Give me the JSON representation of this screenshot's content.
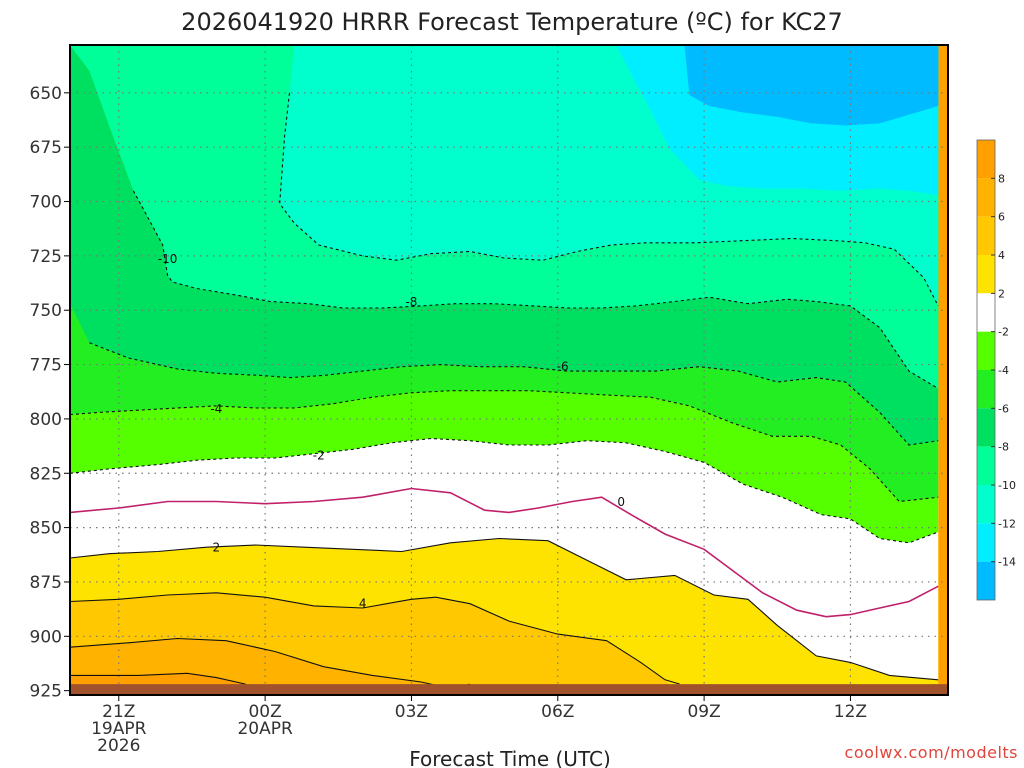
{
  "chart_data": {
    "type": "heatmap",
    "title": "2026041920 HRRR Forecast Temperature (ºC) for KC27",
    "xlabel": "Forecast Time (UTC)",
    "ylabel": "",
    "credit": "coolwx.com/modelts",
    "x_hours": [
      0,
      3,
      6,
      9,
      12,
      15,
      18
    ],
    "xlim": [
      -1,
      17
    ],
    "x_ticks": [
      {
        "hour": 0,
        "lines": [
          "21Z",
          "19APR",
          "2026"
        ]
      },
      {
        "hour": 3,
        "lines": [
          "00Z",
          "20APR"
        ]
      },
      {
        "hour": 6,
        "lines": [
          "03Z"
        ]
      },
      {
        "hour": 9,
        "lines": [
          "06Z"
        ]
      },
      {
        "hour": 12,
        "lines": [
          "09Z"
        ]
      },
      {
        "hour": 15,
        "lines": [
          "12Z"
        ]
      }
    ],
    "y_ticks": [
      650,
      675,
      700,
      725,
      750,
      775,
      800,
      825,
      850,
      875,
      900,
      925
    ],
    "ylim": [
      628,
      927
    ],
    "ground_level_hPa": 922,
    "colorbar": {
      "labels": [
        "8",
        "6",
        "4",
        "2",
        "-2",
        "-4",
        "-6",
        "-8",
        "-10",
        "-12",
        "-14"
      ],
      "bands": [
        {
          "lo": 8,
          "hi": 10,
          "color": "#ff9f00"
        },
        {
          "lo": 6,
          "hi": 8,
          "color": "#ffb300"
        },
        {
          "lo": 4,
          "hi": 6,
          "color": "#ffc800"
        },
        {
          "lo": 2,
          "hi": 4,
          "color": "#ffe300"
        },
        {
          "lo": -2,
          "hi": 2,
          "color": "#ffffff"
        },
        {
          "lo": -4,
          "hi": -2,
          "color": "#55ff00"
        },
        {
          "lo": -6,
          "hi": -4,
          "color": "#22ee22"
        },
        {
          "lo": -8,
          "hi": -6,
          "color": "#00e060"
        },
        {
          "lo": -10,
          "hi": -8,
          "color": "#00ff99"
        },
        {
          "lo": -12,
          "hi": -10,
          "color": "#00ffcc"
        },
        {
          "lo": -14,
          "hi": -12,
          "color": "#00eeff"
        },
        {
          "lo": -16,
          "hi": -14,
          "color": "#00bbff"
        }
      ]
    },
    "contours": [
      {
        "level": -12,
        "color": "#ff9f00",
        "hour": [],
        "hPa": []
      },
      {
        "level": -14,
        "color": "#00bbff",
        "hour": [
          11.6,
          11.7,
          12.1,
          12.8,
          13.5,
          14.2,
          14.9,
          15.6,
          16.2,
          16.8,
          16.8,
          11.6
        ],
        "hPa": [
          628,
          651,
          656,
          659,
          661,
          664,
          665,
          664,
          660,
          656,
          628,
          628
        ]
      },
      {
        "level": -12,
        "color": "#00eeff",
        "hour": [
          10.2,
          10.5,
          10.9,
          11.3,
          11.9,
          12.5,
          13.2,
          14.0,
          14.8,
          15.6,
          16.2,
          16.8,
          16.8,
          10.2
        ],
        "hPa": [
          628,
          641,
          658,
          676,
          690,
          693,
          694,
          694,
          695,
          694,
          695,
          697,
          628,
          628
        ]
      },
      {
        "level": -10,
        "color": "#00ffcc",
        "hour": [
          3.6,
          3.5,
          3.4,
          3.3,
          3.6,
          4.1,
          5.0,
          5.7,
          6.4,
          7.2,
          7.9,
          8.7,
          9.4,
          10.1,
          10.8,
          11.8,
          12.8,
          13.8,
          14.7,
          15.3,
          15.9,
          16.5,
          16.8,
          16.8,
          3.6
        ],
        "hPa": [
          628,
          650,
          670,
          701,
          710,
          720,
          725,
          727,
          724,
          723,
          726,
          727,
          723,
          720,
          719,
          719,
          718,
          717,
          718,
          719,
          722,
          735,
          748,
          628,
          628
        ]
      },
      {
        "level": -8,
        "color": "#00ff99",
        "hour": [
          -1,
          -0.6,
          -0.2,
          0.3,
          0.9,
          1.0,
          1.1,
          1.6,
          2.4,
          3.1,
          3.9,
          4.6,
          5.4,
          6.2,
          6.9,
          7.7,
          8.5,
          9.2,
          9.9,
          10.6,
          11.4,
          12.1,
          12.9,
          13.7,
          14.3,
          15.0,
          15.6,
          16.2,
          16.8,
          16.8,
          -1
        ],
        "hPa": [
          628,
          640,
          665,
          695,
          720,
          734,
          737,
          740,
          743,
          746,
          747,
          749,
          749,
          748,
          747,
          747,
          748,
          749,
          749,
          748,
          746,
          744,
          747,
          745,
          746,
          748,
          758,
          778,
          786,
          628,
          628
        ]
      },
      {
        "level": -6,
        "color": "#00e060",
        "hour": [
          -1,
          -0.6,
          0.2,
          1.2,
          2.0,
          2.9,
          3.5,
          4.2,
          5.0,
          5.8,
          6.6,
          7.4,
          8.3,
          9.2,
          10.1,
          11.0,
          11.9,
          12.7,
          13.5,
          14.3,
          14.9,
          15.6,
          16.2,
          16.8,
          16.8,
          -1
        ],
        "hPa": [
          747,
          765,
          772,
          777,
          779,
          780,
          781,
          780,
          778,
          776,
          775,
          776,
          776,
          778,
          778,
          778,
          776,
          778,
          783,
          781,
          783,
          797,
          812,
          810,
          628,
          628
        ]
      },
      {
        "level": -4,
        "color": "#22ee22",
        "hour": [
          -1,
          -0.4,
          0.4,
          1.2,
          2.0,
          2.8,
          3.6,
          4.4,
          5.2,
          6.0,
          6.8,
          7.6,
          8.4,
          9.2,
          10.0,
          10.9,
          11.7,
          12.6,
          13.4,
          14.2,
          14.8,
          15.4,
          16.0,
          16.8,
          16.8,
          -1
        ],
        "hPa": [
          798,
          797,
          796,
          795,
          794,
          795,
          795,
          793,
          790,
          788,
          787,
          787,
          787,
          788,
          789,
          790,
          794,
          802,
          808,
          808,
          812,
          823,
          838,
          836,
          628,
          628
        ]
      },
      {
        "level": -2,
        "color": "#55ff00",
        "hour": [
          -1,
          -0.2,
          0.8,
          1.6,
          2.4,
          3.2,
          4.0,
          4.8,
          5.6,
          6.4,
          7.2,
          8.0,
          8.8,
          9.6,
          10.4,
          11.2,
          12.0,
          12.8,
          13.6,
          14.4,
          15.0,
          15.6,
          16.2,
          16.8,
          16.8,
          -1
        ],
        "hPa": [
          825,
          823,
          821,
          819,
          818,
          818,
          816,
          814,
          811,
          809,
          810,
          812,
          812,
          810,
          811,
          815,
          820,
          830,
          836,
          844,
          846,
          855,
          857,
          852,
          628,
          628
        ]
      },
      {
        "level": 2,
        "color": "#ffffff",
        "hour": [
          -1,
          -0.2,
          0.8,
          1.8,
          2.8,
          3.8,
          4.8,
          5.8,
          6.8,
          7.8,
          8.8,
          9.6,
          10.4,
          11.4,
          12.2,
          12.9,
          13.5,
          14.3,
          15.0,
          15.8,
          16.8,
          16.8,
          -1
        ],
        "hPa": [
          864,
          862,
          861,
          859,
          858,
          859,
          860,
          861,
          857,
          855,
          856,
          865,
          874,
          872,
          881,
          883,
          895,
          909,
          912,
          918,
          920,
          628,
          628
        ]
      },
      {
        "level": 4,
        "color": "#ffe300",
        "hour": [
          -1,
          0.0,
          1.0,
          2.0,
          3.0,
          4.0,
          5.0,
          6.0,
          6.5,
          7.2,
          8.0,
          9.0,
          10.0,
          10.7,
          11.2,
          11.5,
          16.8,
          16.8,
          -1
        ],
        "hPa": [
          884,
          883,
          881,
          880,
          882,
          886,
          887,
          883,
          882,
          885,
          893,
          899,
          902,
          912,
          920,
          927,
          927,
          628,
          628
        ]
      },
      {
        "level": 6,
        "color": "#ffc800",
        "hour": [
          -1,
          0.2,
          1.2,
          2.2,
          3.2,
          4.2,
          5.2,
          6.2,
          6.8,
          7.2,
          16.8,
          16.8,
          -1
        ],
        "hPa": [
          905,
          903,
          901,
          902,
          907,
          914,
          918,
          921,
          924,
          927,
          927,
          628,
          628
        ]
      },
      {
        "level": 8,
        "color": "#ffb300",
        "hour": [
          -1,
          0.4,
          1.4,
          2.0,
          2.6,
          16.8,
          16.8,
          -1
        ],
        "hPa": [
          918,
          918,
          917,
          919,
          922,
          927,
          628,
          628
        ]
      }
    ],
    "contour_lines": [
      {
        "level": -10,
        "style": "dashed",
        "color": "#111111",
        "label": "-10",
        "label_at": [
          1.0,
          726.5
        ],
        "hour": [
          3.5,
          3.4,
          3.3,
          3.6,
          4.1,
          5.0,
          5.7,
          6.4,
          7.2,
          7.9,
          8.7,
          9.4,
          10.1,
          10.8,
          11.8,
          12.8,
          13.8,
          14.7,
          15.3,
          15.9,
          16.5,
          16.8
        ],
        "hPa": [
          650,
          670,
          701,
          710,
          720,
          725,
          727,
          724,
          723,
          726,
          727,
          723,
          720,
          719,
          719,
          718,
          717,
          718,
          719,
          722,
          735,
          748
        ]
      },
      {
        "level": -8,
        "style": "dashed",
        "color": "#111111",
        "label": "-8",
        "label_at": [
          6.0,
          746.3
        ],
        "hour": [
          0.3,
          0.9,
          1.0,
          1.1,
          1.6,
          2.4,
          3.1,
          3.9,
          4.6,
          5.4,
          6.2,
          6.9,
          7.7,
          8.5,
          9.2,
          9.9,
          10.6,
          11.4,
          12.1,
          12.9,
          13.7,
          14.3,
          15.0,
          15.6,
          16.2,
          16.8
        ],
        "hPa": [
          695,
          720,
          734,
          737,
          740,
          743,
          746,
          747,
          749,
          749,
          748,
          747,
          747,
          748,
          749,
          749,
          748,
          746,
          744,
          747,
          745,
          746,
          748,
          758,
          778,
          786
        ]
      },
      {
        "level": -6,
        "style": "dashed",
        "color": "#111111",
        "label": "-6",
        "label_at": [
          9.1,
          776.0
        ],
        "hour": [
          -0.6,
          0.2,
          1.2,
          2.0,
          2.9,
          3.5,
          4.2,
          5.0,
          5.8,
          6.6,
          7.4,
          8.3,
          9.2,
          10.1,
          11.0,
          11.9,
          12.7,
          13.5,
          14.3,
          14.9,
          15.6,
          16.2,
          16.8
        ],
        "hPa": [
          765,
          772,
          777,
          779,
          780,
          781,
          780,
          778,
          776,
          775,
          776,
          776,
          778,
          778,
          778,
          776,
          778,
          783,
          781,
          783,
          797,
          812,
          810
        ]
      },
      {
        "level": -4,
        "style": "dashed",
        "color": "#111111",
        "label": "-4",
        "label_at": [
          2.0,
          795.5
        ],
        "hour": [
          -1,
          -0.4,
          0.4,
          1.2,
          2.0,
          2.8,
          3.6,
          4.4,
          5.2,
          6.0,
          6.8,
          7.6,
          8.4,
          9.2,
          10.0,
          10.9,
          11.7,
          12.6,
          13.4,
          14.2,
          14.8,
          15.4,
          16.0,
          16.8
        ],
        "hPa": [
          798,
          797,
          796,
          795,
          794,
          795,
          795,
          793,
          790,
          788,
          787,
          787,
          787,
          788,
          789,
          790,
          794,
          802,
          808,
          808,
          812,
          823,
          838,
          836
        ]
      },
      {
        "level": -2,
        "style": "dashed",
        "color": "#111111",
        "label": "-2",
        "label_at": [
          4.1,
          816.8
        ],
        "hour": [
          -1,
          -0.2,
          0.8,
          1.6,
          2.4,
          3.2,
          4.0,
          4.8,
          5.6,
          6.4,
          7.2,
          8.0,
          8.8,
          9.6,
          10.4,
          11.2,
          12.0,
          12.8,
          13.6,
          14.4,
          15.0,
          15.6,
          16.2,
          16.8
        ],
        "hPa": [
          825,
          823,
          821,
          819,
          818,
          818,
          816,
          814,
          811,
          809,
          810,
          812,
          812,
          810,
          811,
          815,
          820,
          830,
          836,
          844,
          846,
          855,
          857,
          852
        ]
      },
      {
        "level": 0,
        "style": "solid",
        "color": "#c0206a",
        "label": "0",
        "label_at": [
          10.3,
          838.3
        ],
        "hour": [
          -1,
          0.0,
          1.0,
          2.0,
          3.0,
          4.0,
          5.0,
          6.0,
          6.8,
          7.5,
          8.0,
          8.6,
          9.3,
          9.9,
          10.5,
          11.2,
          12.0,
          12.6,
          13.2,
          13.9,
          14.5,
          15.0,
          15.6,
          16.2,
          16.8
        ],
        "hPa": [
          843,
          841,
          838,
          838,
          839,
          838,
          836,
          832,
          834,
          842,
          843,
          841,
          838,
          836,
          844,
          853,
          860,
          870,
          880,
          888,
          891,
          890,
          887,
          884,
          877
        ]
      },
      {
        "level": 2,
        "style": "solid",
        "color": "#111111",
        "label": "2",
        "label_at": [
          2.0,
          859.2
        ],
        "hour": [
          -1,
          -0.2,
          0.8,
          1.8,
          2.8,
          3.8,
          4.8,
          5.8,
          6.8,
          7.8,
          8.8,
          9.6,
          10.4,
          11.4,
          12.2,
          12.9,
          13.5,
          14.3,
          15.0,
          15.8,
          16.8
        ],
        "hPa": [
          864,
          862,
          861,
          859,
          858,
          859,
          860,
          861,
          857,
          855,
          856,
          865,
          874,
          872,
          881,
          883,
          895,
          909,
          912,
          918,
          920
        ]
      },
      {
        "level": 4,
        "style": "solid",
        "color": "#111111",
        "label": "4",
        "label_at": [
          5.0,
          884.8
        ],
        "hour": [
          -1,
          0.0,
          1.0,
          2.0,
          3.0,
          4.0,
          5.0,
          6.0,
          6.5,
          7.2,
          8.0,
          9.0,
          10.0,
          10.7,
          11.2,
          11.5
        ],
        "hPa": [
          884,
          883,
          881,
          880,
          882,
          886,
          887,
          883,
          882,
          885,
          893,
          899,
          902,
          912,
          920,
          922
        ]
      },
      {
        "level": 6,
        "style": "solid",
        "color": "#111111",
        "label": "",
        "label_at": [
          0,
          0
        ],
        "hour": [
          -1,
          0.2,
          1.2,
          2.2,
          3.2,
          4.2,
          5.2,
          6.2,
          6.8,
          7.2
        ],
        "hPa": [
          905,
          903,
          901,
          902,
          907,
          914,
          918,
          921,
          924,
          922
        ]
      },
      {
        "level": 8,
        "style": "solid",
        "color": "#111111",
        "label": "",
        "label_at": [
          0,
          0
        ],
        "hour": [
          -1,
          0.4,
          1.4,
          2.0,
          2.6
        ],
        "hPa": [
          918,
          918,
          917,
          919,
          922
        ]
      }
    ],
    "colors": {
      "ground": "#a0522d",
      "grid": "#777777",
      "frame": "#000000",
      "credit": "#e0453b"
    }
  }
}
